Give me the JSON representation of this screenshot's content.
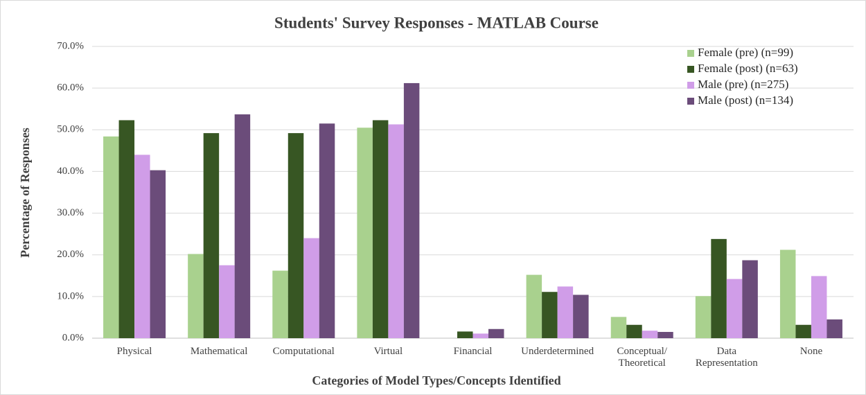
{
  "chart_data": {
    "type": "bar",
    "title": "Students' Survey Responses - MATLAB Course",
    "x_label": "Categories of Model Types/Concepts Identified",
    "y_label": "Percentage of Responses",
    "categories": [
      "Physical",
      "Mathematical",
      "Computational",
      "Virtual",
      "Financial",
      "Underdetermined",
      "Conceptual/\nTheoretical",
      "Data\nRepresentation",
      "None"
    ],
    "series": [
      {
        "name": "Female (pre) (n=99)",
        "color": "#a9d18e",
        "values": [
          48.4,
          20.2,
          16.2,
          50.5,
          0,
          15.2,
          5.1,
          10.1,
          21.2
        ]
      },
      {
        "name": "Female (post) (n=63)",
        "color": "#375623",
        "values": [
          52.3,
          49.2,
          49.2,
          52.3,
          1.6,
          11.1,
          3.2,
          23.8,
          3.2
        ]
      },
      {
        "name": "Male (pre) (n=275)",
        "color": "#d09de8",
        "values": [
          44.0,
          17.5,
          24.0,
          51.3,
          1.1,
          12.4,
          1.8,
          14.2,
          14.9
        ]
      },
      {
        "name": "Male (post) (n=134)",
        "color": "#6b4c7a",
        "values": [
          40.3,
          53.7,
          51.5,
          61.2,
          2.2,
          10.4,
          1.5,
          18.7,
          4.5
        ]
      }
    ],
    "ylim": [
      0,
      70
    ],
    "yticks": [
      {
        "value": 0,
        "label": "0.0%"
      },
      {
        "value": 10,
        "label": "10.0%"
      },
      {
        "value": 20,
        "label": "20.0%"
      },
      {
        "value": 30,
        "label": "30.0%"
      },
      {
        "value": 40,
        "label": "40.0%"
      },
      {
        "value": 50,
        "label": "50.0%"
      },
      {
        "value": 60,
        "label": "60.0%"
      },
      {
        "value": 70,
        "label": "70.0%"
      }
    ],
    "grid": true,
    "legend": "top-right"
  }
}
